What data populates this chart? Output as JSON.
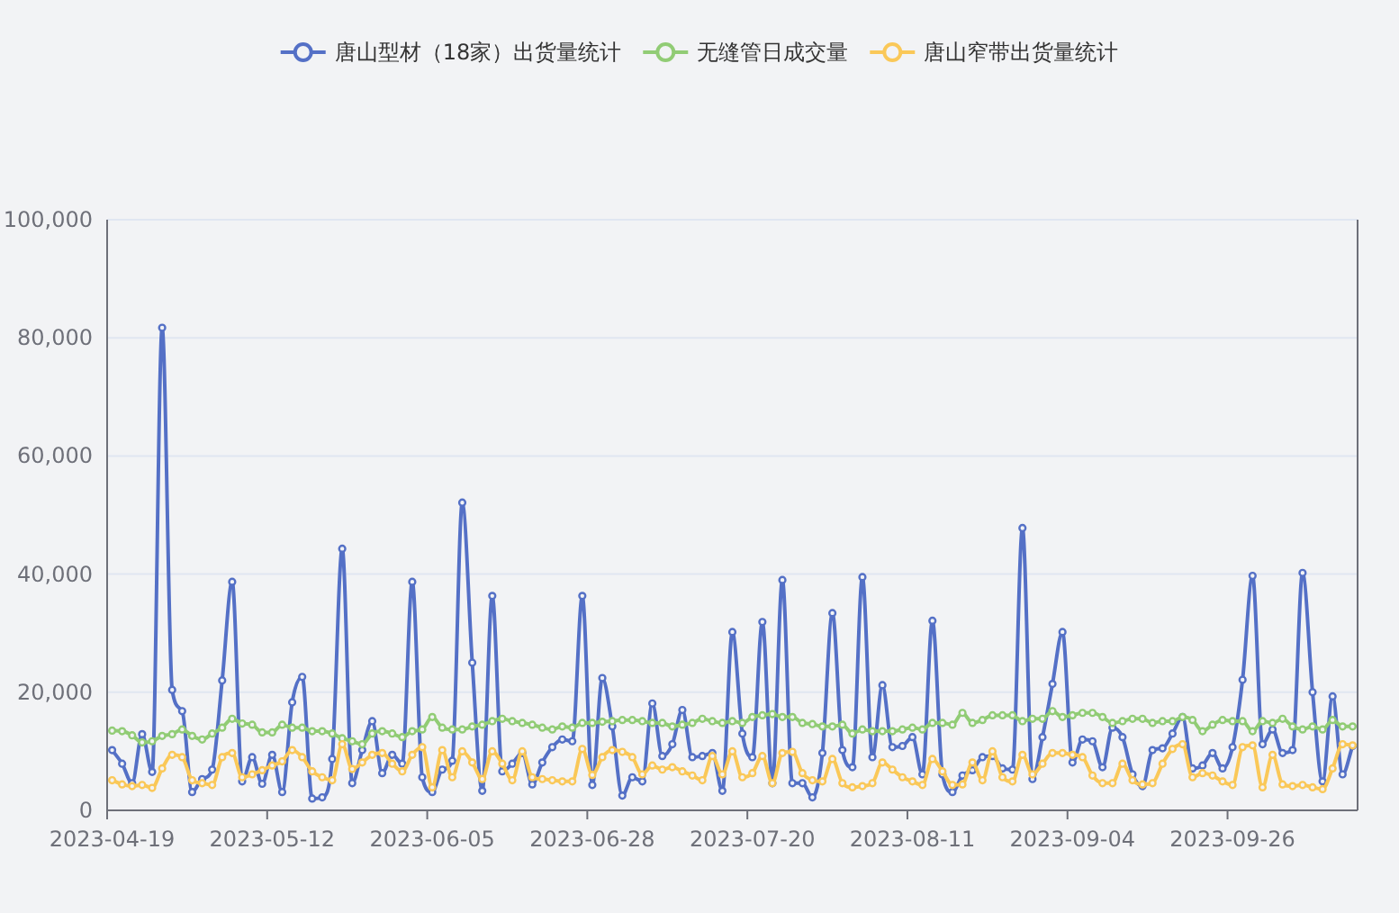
{
  "chart_data": {
    "type": "line",
    "categories": [
      "2023-04-19",
      null,
      null,
      null,
      null,
      null,
      null,
      null,
      null,
      null,
      null,
      null,
      null,
      null,
      null,
      null,
      "2023-05-12",
      null,
      null,
      null,
      null,
      null,
      null,
      null,
      null,
      null,
      null,
      null,
      null,
      null,
      null,
      null,
      "2023-06-05",
      null,
      null,
      null,
      null,
      null,
      null,
      null,
      null,
      null,
      null,
      null,
      null,
      null,
      null,
      null,
      "2023-06-28",
      null,
      null,
      null,
      null,
      null,
      null,
      null,
      null,
      null,
      null,
      null,
      null,
      null,
      null,
      null,
      "2023-07-20",
      null,
      null,
      null,
      null,
      null,
      null,
      null,
      null,
      null,
      null,
      null,
      null,
      null,
      null,
      null,
      "2023-08-11",
      null,
      null,
      null,
      null,
      null,
      null,
      null,
      null,
      null,
      null,
      null,
      null,
      null,
      null,
      null,
      "2023-09-04",
      null,
      null,
      null,
      null,
      null,
      null,
      null,
      null,
      null,
      null,
      null,
      null,
      null,
      null,
      null,
      "2023-09-26",
      null,
      null,
      null,
      null,
      null,
      null,
      null,
      null,
      null,
      null,
      null,
      null
    ],
    "series": [
      {
        "name": "唐山型材（18家）出货量统计",
        "color": "#5470c6",
        "values": [
          10200,
          7900,
          4600,
          12900,
          6500,
          81700,
          20400,
          16800,
          3100,
          5300,
          6900,
          22000,
          38700,
          4900,
          9000,
          4500,
          9400,
          3100,
          18300,
          22600,
          2000,
          2200,
          8700,
          44300,
          4600,
          10200,
          15100,
          6300,
          9400,
          7900,
          38700,
          5600,
          3100,
          6900,
          8400,
          52100,
          25000,
          3300,
          36300,
          6600,
          7900,
          9700,
          4400,
          8100,
          10700,
          12000,
          11700,
          36300,
          4300,
          22400,
          14200,
          2500,
          5600,
          4900,
          18100,
          9200,
          11200,
          17000,
          9000,
          9200,
          9700,
          3300,
          30200,
          13000,
          9000,
          31900,
          4600,
          39000,
          4600,
          4600,
          2200,
          9700,
          33400,
          10200,
          7300,
          39500,
          9000,
          21200,
          10700,
          10900,
          12400,
          6100,
          32100,
          6100,
          3100,
          5900,
          6800,
          9000,
          9200,
          7100,
          6900,
          47800,
          5300,
          12400,
          21400,
          30200,
          8100,
          12000,
          11700,
          7300,
          14000,
          12400,
          6100,
          4100,
          10200,
          10500,
          13000,
          15800,
          7100,
          7600,
          9700,
          7100,
          10700,
          22100,
          39700,
          11200,
          13700,
          9700,
          10200,
          40200,
          20000,
          4900,
          19300,
          6100,
          10900
        ]
      },
      {
        "name": "无缝管日成交量",
        "color": "#91cc75",
        "values": [
          13500,
          13400,
          12700,
          11500,
          11700,
          12600,
          12900,
          13700,
          12600,
          12000,
          13000,
          14000,
          15500,
          14700,
          14500,
          13200,
          13200,
          14500,
          14000,
          14000,
          13400,
          13400,
          13000,
          12200,
          11700,
          11200,
          13000,
          13400,
          13000,
          12400,
          13400,
          13700,
          15800,
          14000,
          13700,
          13700,
          14200,
          14500,
          15100,
          15500,
          15100,
          14800,
          14500,
          14000,
          13700,
          14200,
          14000,
          14800,
          14800,
          15000,
          15100,
          15300,
          15300,
          15100,
          14800,
          14800,
          14200,
          14500,
          14800,
          15500,
          15100,
          14800,
          15100,
          14800,
          15800,
          16100,
          16300,
          15800,
          15800,
          14800,
          14600,
          14200,
          14200,
          14500,
          13000,
          13700,
          13400,
          13400,
          13400,
          13700,
          14000,
          13700,
          14800,
          14800,
          14500,
          16500,
          14800,
          15300,
          16100,
          16100,
          16100,
          15100,
          15500,
          15500,
          16800,
          15800,
          16100,
          16500,
          16500,
          15800,
          14800,
          15100,
          15500,
          15500,
          14800,
          15100,
          15100,
          15800,
          15300,
          13400,
          14500,
          15300,
          15100,
          15100,
          13400,
          15100,
          14800,
          15500,
          14200,
          13700,
          14200,
          13700,
          15300,
          14200,
          14200
        ]
      },
      {
        "name": "唐山窄带出货量统计",
        "color": "#fac858",
        "values": [
          5100,
          4400,
          4100,
          4300,
          3800,
          7100,
          9400,
          9000,
          5100,
          4600,
          4300,
          9000,
          9700,
          5600,
          6100,
          6800,
          7600,
          8300,
          10200,
          9000,
          6600,
          5600,
          5100,
          11200,
          7000,
          8100,
          9400,
          9700,
          7900,
          6600,
          9400,
          10700,
          3900,
          10200,
          5600,
          10000,
          8100,
          5300,
          10000,
          7900,
          5100,
          10000,
          5600,
          5300,
          5100,
          4900,
          4900,
          10400,
          6000,
          9000,
          10200,
          9900,
          9000,
          6100,
          7600,
          6900,
          7300,
          6600,
          5900,
          5100,
          9200,
          6100,
          10000,
          5600,
          6300,
          9200,
          4600,
          9700,
          9900,
          6300,
          5100,
          4900,
          8700,
          4600,
          3900,
          4100,
          4600,
          8100,
          6900,
          5600,
          4900,
          4300,
          8700,
          6600,
          4300,
          4400,
          8100,
          5100,
          10000,
          5600,
          4900,
          9400,
          6100,
          7900,
          9700,
          9700,
          9400,
          9000,
          5900,
          4600,
          4600,
          7900,
          5100,
          4400,
          4600,
          7900,
          10400,
          11200,
          5600,
          6300,
          5900,
          4900,
          4300,
          10700,
          11000,
          3900,
          9400,
          4400,
          4100,
          4300,
          3900,
          3600,
          7100,
          11200,
          11000
        ]
      }
    ],
    "ylim": [
      0,
      100000
    ],
    "yticks": [
      0,
      {
        "value": 20000,
        "label": "20,000"
      },
      {
        "value": 40000,
        "label": "40,000"
      },
      {
        "value": 60000,
        "label": "60,000"
      },
      {
        "value": 80000,
        "label": "80,000"
      },
      {
        "value": 100000,
        "label": "100,000"
      }
    ],
    "grid": "y",
    "legend": "top",
    "marker": "circle",
    "line_style": "solid"
  }
}
